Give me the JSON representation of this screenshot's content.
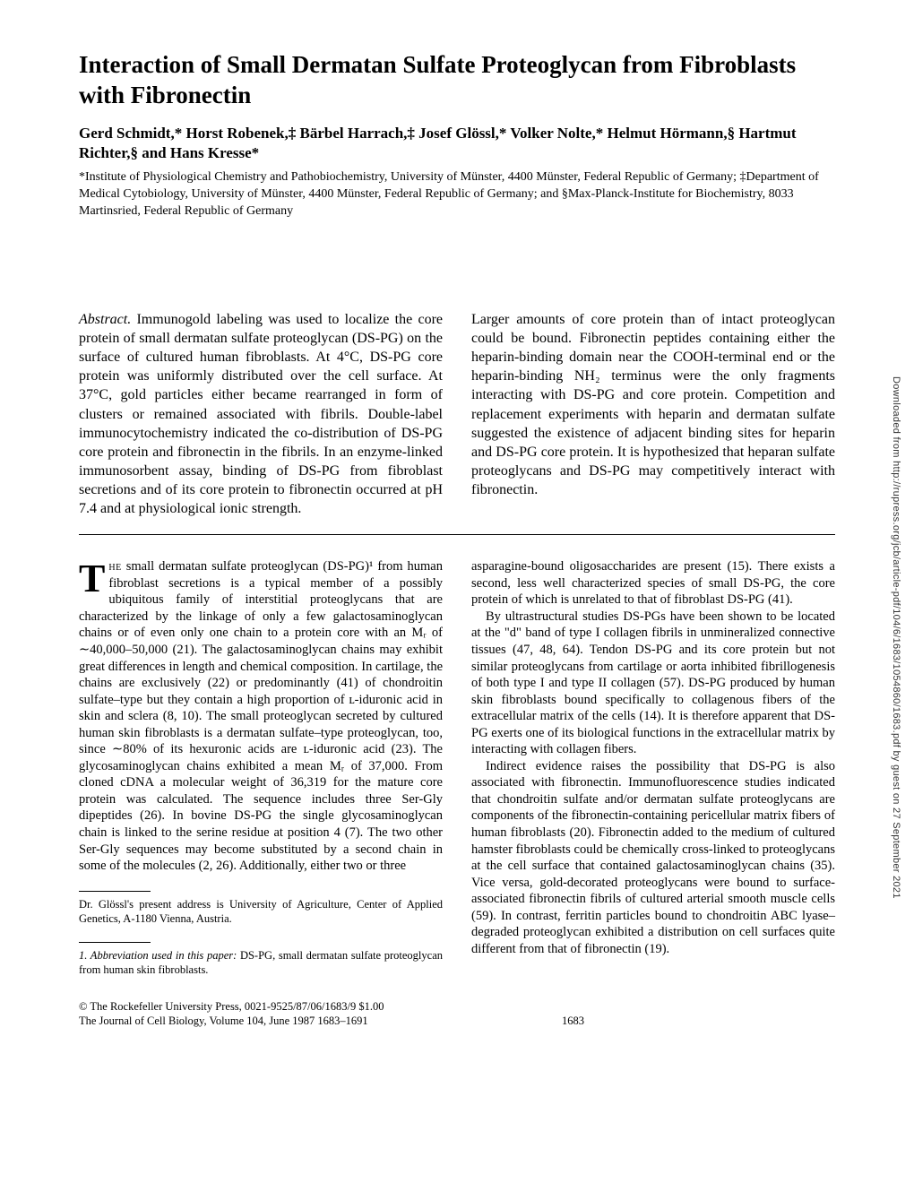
{
  "title": "Interaction of Small Dermatan Sulfate Proteoglycan from Fibroblasts with Fibronectin",
  "authors": "Gerd Schmidt,* Horst Robenek,‡ Bärbel Harrach,‡ Josef Glössl,* Volker Nolte,* Helmut Hörmann,§ Hartmut Richter,§ and Hans Kresse*",
  "affiliations": "*Institute of Physiological Chemistry and Pathobiochemistry, University of Münster, 4400 Münster, Federal Republic of Germany; ‡Department of Medical Cytobiology, University of Münster, 4400 Münster, Federal Republic of Germany; and §Max-Planck-Institute for Biochemistry, 8033 Martinsried, Federal Republic of Germany",
  "abstract_label": "Abstract.",
  "abstract_left": " Immunogold labeling was used to localize the core protein of small dermatan sulfate proteoglycan (DS-PG) on the surface of cultured human fibroblasts. At 4°C, DS-PG core protein was uniformly distributed over the cell surface. At 37°C, gold particles either became rearranged in form of clusters or remained associated with fibrils. Double-label immunocytochemistry indicated the co-distribution of DS-PG core protein and fibronectin in the fibrils. In an enzyme-linked immunosorbent assay, binding of DS-PG from fibroblast secretions and of its core protein to fibronectin occurred at pH 7.4 and at physiological ionic strength.",
  "abstract_right": "Larger amounts of core protein than of intact proteoglycan could be bound. Fibronectin peptides containing either the heparin-binding domain near the COOH-terminal end or the heparin-binding NH₂ terminus were the only fragments interacting with DS-PG and core protein. Competition and replacement experiments with heparin and dermatan sulfate suggested the existence of adjacent binding sites for heparin and DS-PG core protein. It is hypothesized that heparan sulfate proteoglycans and DS-PG may competitively interact with fibronectin.",
  "body_left_dropcap": "T",
  "body_left_sc": "he",
  "body_left_p1": " small dermatan sulfate proteoglycan (DS-PG)¹ from human fibroblast secretions is a typical member of a possibly ubiquitous family of interstitial proteoglycans that are characterized by the linkage of only a few galactosaminoglycan chains or of even only one chain to a protein core with an Mᵣ of ∼40,000–50,000 (21). The galactosaminoglycan chains may exhibit great differences in length and chemical composition. In cartilage, the chains are exclusively (22) or predominantly (41) of chondroitin sulfate–type but they contain a high proportion of ʟ-iduronic acid in skin and sclera (8, 10). The small proteoglycan secreted by cultured human skin fibroblasts is a dermatan sulfate–type proteoglycan, too, since ∼80% of its hexuronic acids are ʟ-iduronic acid (23). The glycosaminoglycan chains exhibited a mean Mᵣ of 37,000. From cloned cDNA a molecular weight of 36,319 for the mature core protein was calculated. The sequence includes three Ser-Gly dipeptides (26). In bovine DS-PG the single glycosaminoglycan chain is linked to the serine residue at position 4 (7). The two other Ser-Gly sequences may become substituted by a second chain in some of the molecules (2, 26). Additionally, either two or three",
  "body_right_p1": "asparagine-bound oligosaccharides are present (15). There exists a second, less well characterized species of small DS-PG, the core protein of which is unrelated to that of fibroblast DS-PG (41).",
  "body_right_p2": "By ultrastructural studies DS-PGs have been shown to be located at the \"d\" band of type I collagen fibrils in unmineralized connective tissues (47, 48, 64). Tendon DS-PG and its core protein but not similar proteoglycans from cartilage or aorta inhibited fibrillogenesis of both type I and type II collagen (57). DS-PG produced by human skin fibroblasts bound specifically to collagenous fibers of the extracellular matrix of the cells (14). It is therefore apparent that DS-PG exerts one of its biological functions in the extracellular matrix by interacting with collagen fibers.",
  "body_right_p3": "Indirect evidence raises the possibility that DS-PG is also associated with fibronectin. Immunofluorescence studies indicated that chondroitin sulfate and/or dermatan sulfate proteoglycans are components of the fibronectin-containing pericellular matrix fibers of human fibroblasts (20). Fibronectin added to the medium of cultured hamster fibroblasts could be chemically cross-linked to proteoglycans at the cell surface that contained galactosaminoglycan chains (35). Vice versa, gold-decorated proteoglycans were bound to surface-associated fibronectin fibrils of cultured arterial smooth muscle cells (59). In contrast, ferritin particles bound to chondroitin ABC lyase–degraded proteoglycan exhibited a distribution on cell surfaces quite different from that of fibronectin (19).",
  "footnote1": "Dr. Glössl's present address is University of Agriculture, Center of Applied Genetics, A-1180 Vienna, Austria.",
  "footnote2_label": "1. Abbreviation used in this paper:",
  "footnote2_text": " DS-PG, small dermatan sulfate proteoglycan from human skin fibroblasts.",
  "copyright_line1": "© The Rockefeller University Press, 0021-9525/87/06/1683/9 $1.00",
  "copyright_line2": "The Journal of Cell Biology, Volume 104, June 1987 1683–1691",
  "page_number": "1683",
  "sidebar": "Downloaded from http://rupress.org/jcb/article-pdf/104/6/1683/1054860/1683.pdf by guest on 27 September 2021"
}
